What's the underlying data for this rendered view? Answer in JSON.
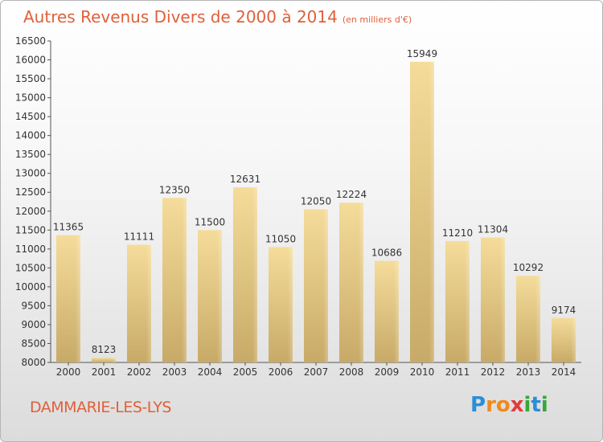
{
  "header": {
    "title": "Autres Revenus Divers de 2000 à 2014",
    "unit": "(en milliers d'€)"
  },
  "footer": {
    "commune": "DAMMARIE-LES-LYS",
    "logo_letters": [
      "P",
      "r",
      "o",
      "x",
      "i",
      "t",
      "i"
    ],
    "logo_colors": [
      "#2a8fd6",
      "#f08a1c",
      "#f08a1c",
      "#e23b3b",
      "#3aa53a",
      "#2a8fd6",
      "#3aa53a"
    ]
  },
  "colors": {
    "title": "#e0603a",
    "bar_light": "#f5dc9a",
    "bar_dark": "#c8aa68"
  },
  "chart_data": {
    "type": "bar",
    "categories": [
      "2000",
      "2001",
      "2002",
      "2003",
      "2004",
      "2005",
      "2006",
      "2007",
      "2008",
      "2009",
      "2010",
      "2011",
      "2012",
      "2013",
      "2014"
    ],
    "values": [
      11365,
      8123,
      11111,
      12350,
      11500,
      12631,
      11050,
      12050,
      12224,
      10686,
      15949,
      11210,
      11304,
      10292,
      9174
    ],
    "ylim": [
      8000,
      16500
    ],
    "yticks": [
      8000,
      8500,
      9000,
      9500,
      10000,
      10500,
      11000,
      11500,
      12000,
      12500,
      13000,
      13500,
      14000,
      14500,
      15000,
      15500,
      16000,
      16500
    ],
    "grid": false
  }
}
